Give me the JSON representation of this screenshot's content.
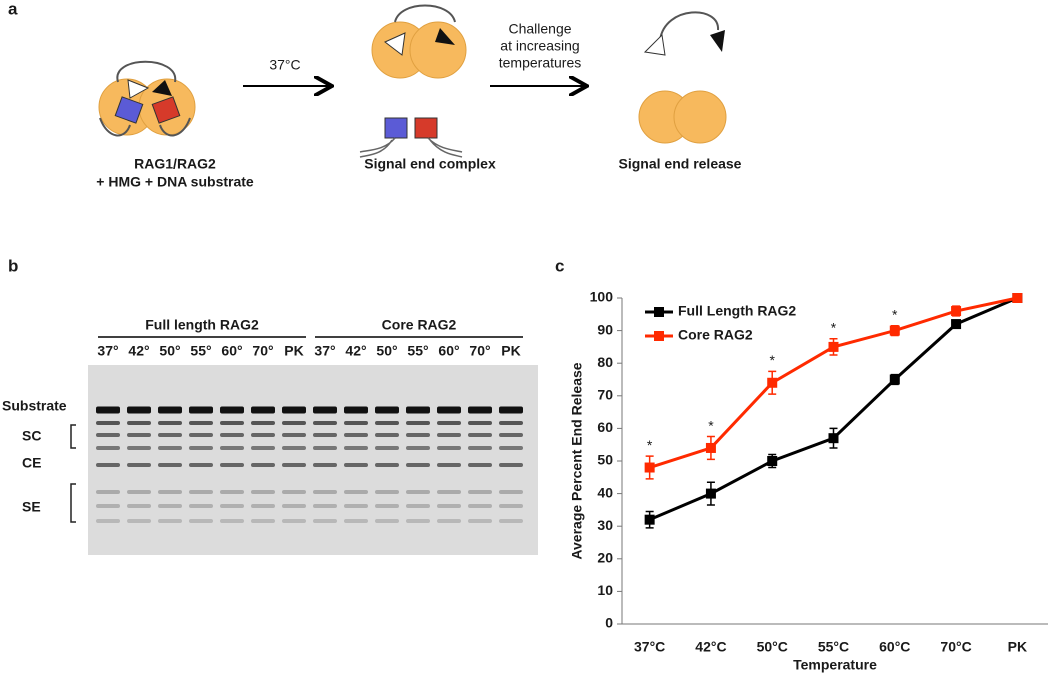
{
  "panel_a": {
    "label": "a",
    "step1_label": [
      "RAG1/RAG2",
      "+ HMG + DNA substrate"
    ],
    "arrow1_label": "37°C",
    "step2_label": "Signal end complex",
    "arrow2_label": [
      "Challenge",
      "at increasing",
      "temperatures"
    ],
    "step3_label": "Signal end release"
  },
  "panel_b": {
    "label": "b",
    "groups": [
      {
        "name": "Full length RAG2",
        "lanes": [
          "37°",
          "42°",
          "50°",
          "55°",
          "60°",
          "70°",
          "PK"
        ]
      },
      {
        "name": "Core RAG2",
        "lanes": [
          "37°",
          "42°",
          "50°",
          "55°",
          "60°",
          "70°",
          "PK"
        ]
      }
    ],
    "band_labels": [
      "Substrate",
      "SC",
      "CE",
      "SE"
    ]
  },
  "chart_data": {
    "type": "line",
    "panel_label": "c",
    "x_label": "Temperature",
    "y_label": "Average Percent End Release",
    "categories": [
      "37°C",
      "42°C",
      "50°C",
      "55°C",
      "60°C",
      "70°C",
      "PK"
    ],
    "series": [
      {
        "name": "Full Length RAG2",
        "color": "#000000",
        "values": [
          32,
          40,
          50,
          57,
          75,
          92,
          100
        ],
        "errors": [
          2.5,
          3.5,
          2,
          3,
          1.5,
          1,
          0
        ]
      },
      {
        "name": "Core RAG2",
        "color": "#ff2a00",
        "values": [
          48,
          54,
          74,
          85,
          90,
          96,
          100
        ],
        "errors": [
          3.5,
          3.5,
          3.5,
          2.5,
          1.5,
          1.5,
          0
        ]
      }
    ],
    "significance_marks": [
      "*",
      "*",
      "*",
      "*",
      "*",
      null,
      null
    ],
    "ylim": [
      0,
      100
    ],
    "yticks": [
      0,
      10,
      20,
      30,
      40,
      50,
      60,
      70,
      80,
      90,
      100
    ],
    "grid": false,
    "legend": "top-left"
  }
}
